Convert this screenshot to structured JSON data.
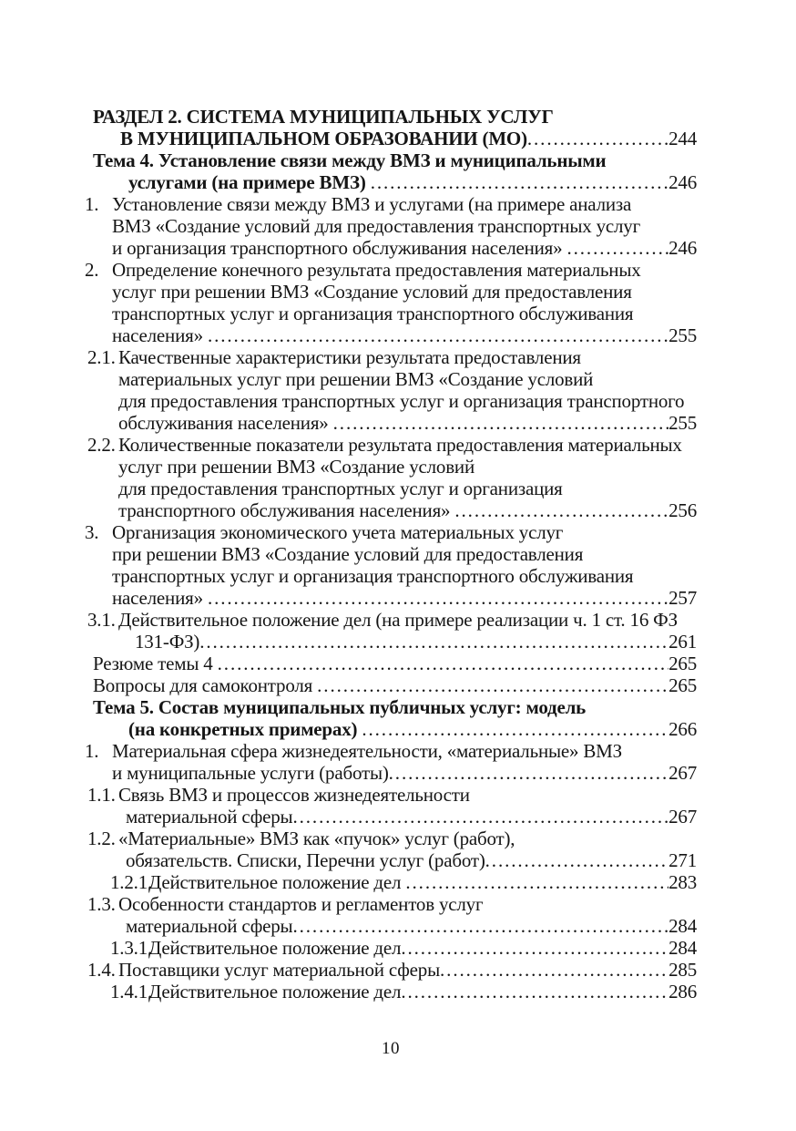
{
  "colors": {
    "text": "#151515",
    "background": "#ffffff"
  },
  "footer": {
    "page_number": "10"
  },
  "toc": {
    "entries": [
      {
        "style": "bold",
        "page": "244",
        "lines": [
          {
            "i": "h",
            "t": "РАЗДЕЛ 2. СИСТЕМА МУНИЦИПАЛЬНЫХ УСЛУГ"
          },
          {
            "i": "hc1",
            "t": "В МУНИЦИПАЛЬНОМ ОБРАЗОВАНИИ (МО)"
          }
        ]
      },
      {
        "style": "bold",
        "page": "246",
        "lines": [
          {
            "i": "h",
            "t": "Тема 4. Установление связи между ВМЗ и муниципальными"
          },
          {
            "i": "hc2",
            "t": "услугами (на примере ВМЗ) "
          }
        ]
      },
      {
        "page": "246",
        "lines": [
          {
            "i": "n1",
            "m": "1.",
            "t": "Установление связи между ВМЗ и услугами (на примере анализа"
          },
          {
            "i": "n1c",
            "t": "ВМЗ «Создание условий для предоставления транспортных услуг"
          },
          {
            "i": "n1c",
            "t": "и организация транспортного обслуживания населения» "
          }
        ]
      },
      {
        "page": "255",
        "lines": [
          {
            "i": "n1",
            "m": "2.",
            "t": "Определение конечного результата предоставления материальных"
          },
          {
            "i": "n1c",
            "t": "услуг при решении ВМЗ «Создание условий для предоставления"
          },
          {
            "i": "n1c",
            "t": "транспортных услуг и организация транспортного обслуживания"
          },
          {
            "i": "n1c",
            "t": "населения» "
          }
        ]
      },
      {
        "page": "255",
        "lines": [
          {
            "i": "n2",
            "m": "2.1.",
            "t": "Качественные характеристики результата предоставления"
          },
          {
            "i": "n2c",
            "t": "материальных услуг при решении ВМЗ «Создание условий"
          },
          {
            "i": "n2c",
            "t": "для предоставления транспортных услуг и организация транспортного"
          },
          {
            "i": "n2c",
            "t": "обслуживания населения» "
          }
        ]
      },
      {
        "page": "256",
        "lines": [
          {
            "i": "n2",
            "m": "2.2.",
            "t": "Количественные показатели результата предоставления материальных"
          },
          {
            "i": "n2c",
            "t": "услуг при решении ВМЗ «Создание условий"
          },
          {
            "i": "n2c",
            "t": "для предоставления транспортных услуг и организация"
          },
          {
            "i": "n2c",
            "t": "транспортного обслуживания населения» "
          }
        ]
      },
      {
        "page": "257",
        "lines": [
          {
            "i": "n1",
            "m": "3.",
            "t": "Организация экономического учета материальных услуг"
          },
          {
            "i": "n1c",
            "t": "при решении ВМЗ «Создание условий для предоставления"
          },
          {
            "i": "n1c",
            "t": "транспортных услуг и организация транспортного обслуживания"
          },
          {
            "i": "n1c",
            "t": "населения» "
          }
        ]
      },
      {
        "page": "261",
        "lines": [
          {
            "i": "n2",
            "m": "3.1.",
            "t": "Действительное положение дел (на примере реализации ч. 1 ст. 16 ФЗ"
          },
          {
            "i": "n2d",
            "t": "131-ФЗ)"
          }
        ]
      },
      {
        "page": "265",
        "lines": [
          {
            "i": "h",
            "t": "Резюме темы 4 "
          }
        ]
      },
      {
        "page": "265",
        "lines": [
          {
            "i": "h",
            "t": "Вопросы для самоконтроля "
          }
        ]
      },
      {
        "style": "bold",
        "page": "266",
        "lines": [
          {
            "i": "h",
            "t": "Тема 5. Состав муниципальных публичных услуг: модель"
          },
          {
            "i": "hc2",
            "t": "(на конкретных примерах) "
          }
        ]
      },
      {
        "page": "267",
        "lines": [
          {
            "i": "n1",
            "m": "1.",
            "t": "Материальная сфера жизнедеятельности, «материальные» ВМЗ"
          },
          {
            "i": "n1c",
            "t": "и муниципальные услуги (работы)"
          }
        ]
      },
      {
        "page": "267",
        "lines": [
          {
            "i": "n2",
            "m": "1.1.",
            "t": "Связь ВМЗ и процессов жизнедеятельности"
          },
          {
            "i": "n2e",
            "t": "материальной сферы"
          }
        ]
      },
      {
        "page": "271",
        "lines": [
          {
            "i": "n2",
            "m": "1.2.",
            "t": "«Материальные» ВМЗ как «пучок» услуг (работ),"
          },
          {
            "i": "n2e",
            "t": "обязательств. Списки, Перечни услуг (работ)"
          }
        ]
      },
      {
        "page": "283",
        "lines": [
          {
            "i": "n3",
            "m": "1.2.1.",
            "t": "Действительное положение дел "
          }
        ]
      },
      {
        "page": "284",
        "lines": [
          {
            "i": "n2",
            "m": "1.3.",
            "t": "Особенности стандартов и регламентов услуг"
          },
          {
            "i": "n2e",
            "t": "материальной сферы"
          }
        ]
      },
      {
        "page": "284",
        "lines": [
          {
            "i": "n3",
            "m": "1.3.1.",
            "t": "Действительное положение дел"
          }
        ]
      },
      {
        "page": "285",
        "lines": [
          {
            "i": "n2",
            "m": "1.4.",
            "t": "Поставщики услуг материальной сферы"
          }
        ]
      },
      {
        "page": "286",
        "lines": [
          {
            "i": "n3",
            "m": "1.4.1.",
            "t": "Действительное положение дел"
          }
        ]
      }
    ]
  }
}
